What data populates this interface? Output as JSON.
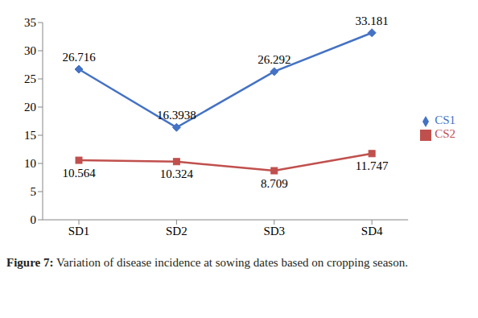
{
  "chart_data": {
    "type": "line",
    "caption": "Figure 7: Variation of disease incidence at sowing dates based on cropping season.",
    "categories": [
      "SD1",
      "SD2",
      "SD3",
      "SD4"
    ],
    "series": [
      {
        "name": "CS1",
        "color": "#4472c4",
        "marker": "diamond",
        "values": [
          26.716,
          16.3938,
          26.292,
          33.181
        ]
      },
      {
        "name": "CS2",
        "color": "#c0504d",
        "marker": "square",
        "values": [
          10.564,
          10.324,
          8.709,
          11.747
        ]
      }
    ],
    "ylim": [
      0,
      35
    ],
    "yticks": [
      0,
      5,
      10,
      15,
      20,
      25,
      30,
      35
    ],
    "grid": false,
    "legend": "right",
    "data_labels": true
  }
}
